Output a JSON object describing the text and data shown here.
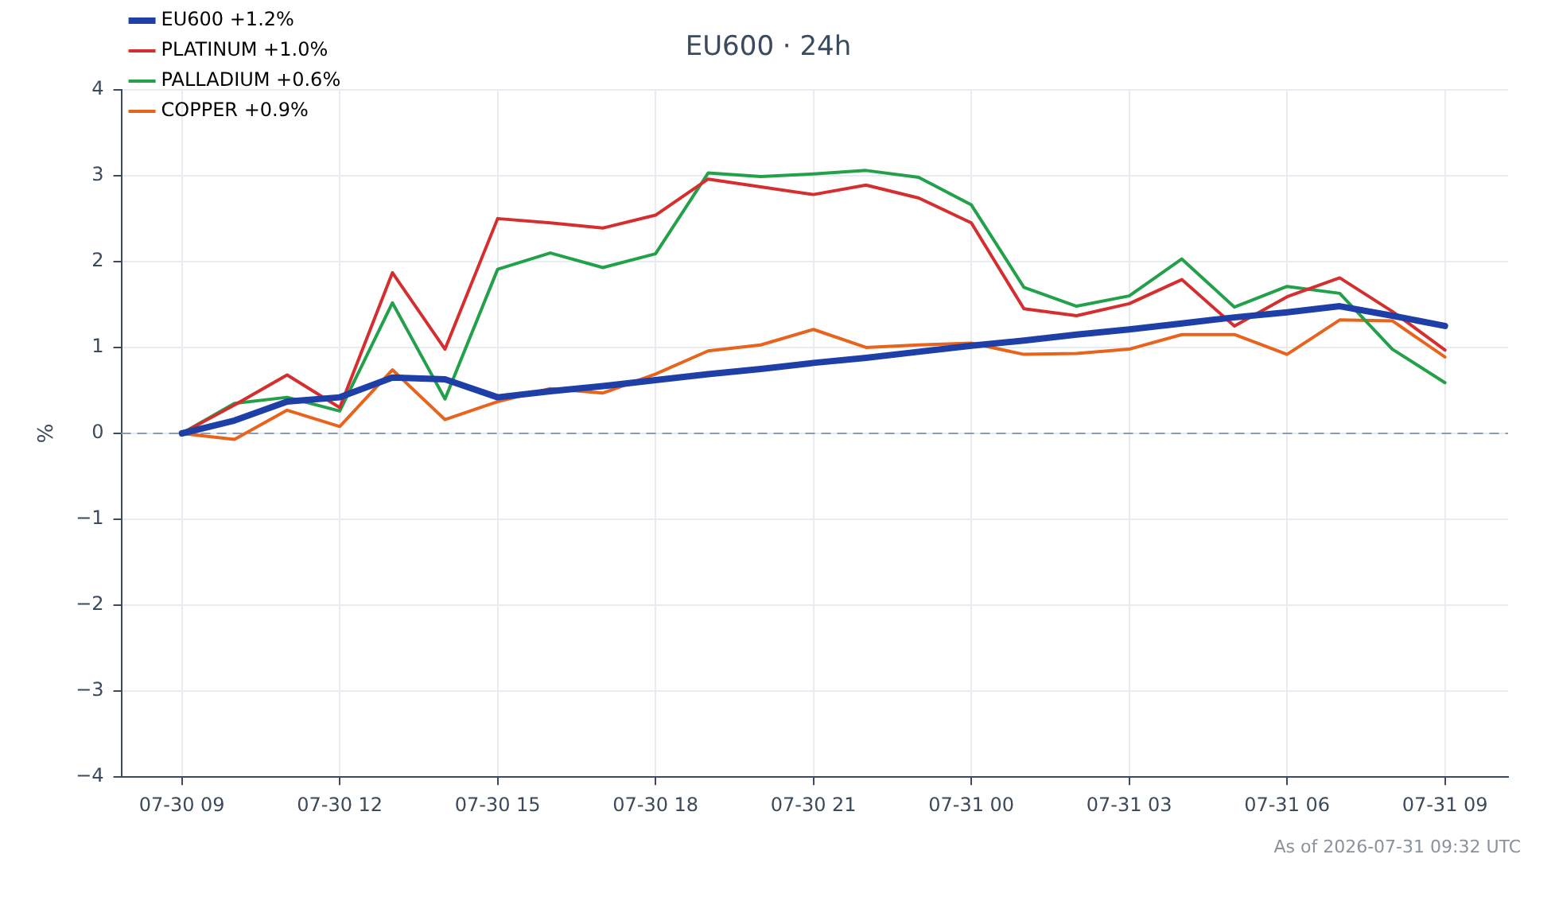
{
  "chart_data": {
    "type": "line",
    "title": "EU600 · 24h",
    "ylabel": "%",
    "x": [
      "2026-07-30T09:00",
      "2026-07-30T10:00",
      "2026-07-30T11:00",
      "2026-07-30T12:00",
      "2026-07-30T13:00",
      "2026-07-30T14:00",
      "2026-07-30T15:00",
      "2026-07-30T16:00",
      "2026-07-30T17:00",
      "2026-07-30T18:00",
      "2026-07-30T19:00",
      "2026-07-30T20:00",
      "2026-07-30T21:00",
      "2026-07-30T22:00",
      "2026-07-30T23:00",
      "2026-07-31T00:00",
      "2026-07-31T01:00",
      "2026-07-31T02:00",
      "2026-07-31T03:00",
      "2026-07-31T04:00",
      "2026-07-31T05:00",
      "2026-07-31T06:00",
      "2026-07-31T07:00",
      "2026-07-31T08:00",
      "2026-07-31T09:00"
    ],
    "series": [
      {
        "name": "EU600 +1.2%",
        "color": "#1f3fa8",
        "values": [
          0,
          0.15,
          0.37,
          0.42,
          0.65,
          0.63,
          0.42,
          0.49,
          0.55,
          0.62,
          0.69,
          0.75,
          0.82,
          0.88,
          0.95,
          1.02,
          1.08,
          1.15,
          1.21,
          1.28,
          1.35,
          1.41,
          1.48,
          1.37,
          1.25
        ]
      },
      {
        "name": "PLATINUM +1.0%",
        "color": "#d62e2e",
        "values": [
          0,
          0.33,
          0.68,
          0.3,
          1.87,
          0.98,
          2.5,
          2.45,
          2.39,
          2.54,
          2.96,
          2.87,
          2.78,
          2.89,
          2.74,
          2.45,
          1.45,
          1.37,
          1.51,
          1.79,
          1.25,
          1.59,
          1.81,
          1.42,
          0.97
        ]
      },
      {
        "name": "PALLADIUM +0.6%",
        "color": "#23a04a",
        "values": [
          0,
          0.35,
          0.42,
          0.26,
          1.52,
          0.4,
          1.91,
          2.1,
          1.93,
          2.09,
          3.03,
          2.99,
          3.02,
          3.06,
          2.98,
          2.66,
          1.7,
          1.48,
          1.6,
          2.03,
          1.47,
          1.71,
          1.63,
          0.98,
          0.59
        ]
      },
      {
        "name": "COPPER +0.9%",
        "color": "#e8631c",
        "values": [
          0,
          -0.07,
          0.27,
          0.08,
          0.74,
          0.16,
          0.37,
          0.52,
          0.47,
          0.69,
          0.96,
          1.03,
          1.21,
          1.0,
          1.03,
          1.05,
          0.92,
          0.93,
          0.98,
          1.15,
          1.15,
          0.92,
          1.32,
          1.31,
          0.89
        ]
      }
    ],
    "xlim": [
      "2026-07-30T07:51",
      "2026-07-31T10:12"
    ],
    "xticks": [
      {
        "value": "2026-07-30T09:00",
        "label": "07-30 09"
      },
      {
        "value": "2026-07-30T12:00",
        "label": "07-30 12"
      },
      {
        "value": "2026-07-30T15:00",
        "label": "07-30 15"
      },
      {
        "value": "2026-07-30T18:00",
        "label": "07-30 18"
      },
      {
        "value": "2026-07-30T21:00",
        "label": "07-30 21"
      },
      {
        "value": "2026-07-31T00:00",
        "label": "07-31 00"
      },
      {
        "value": "2026-07-31T03:00",
        "label": "07-31 03"
      },
      {
        "value": "2026-07-31T06:00",
        "label": "07-31 06"
      },
      {
        "value": "2026-07-31T09:00",
        "label": "07-31 09"
      }
    ],
    "ylim": [
      -4,
      4
    ],
    "yticks": [
      {
        "value": -4,
        "label": "−4"
      },
      {
        "value": -3,
        "label": "−3"
      },
      {
        "value": -2,
        "label": "−2"
      },
      {
        "value": -1,
        "label": "−1"
      },
      0,
      1,
      2,
      3,
      4
    ],
    "ref_lines": [
      {
        "axis": "y",
        "value": 0,
        "color": "#8c9bb5",
        "line_style": "dashed"
      }
    ],
    "annotations": [
      "As of 2026-07-31 09:32 UTC"
    ],
    "grid": true,
    "legend": "top left",
    "marker": "none",
    "line_style": "solid"
  }
}
